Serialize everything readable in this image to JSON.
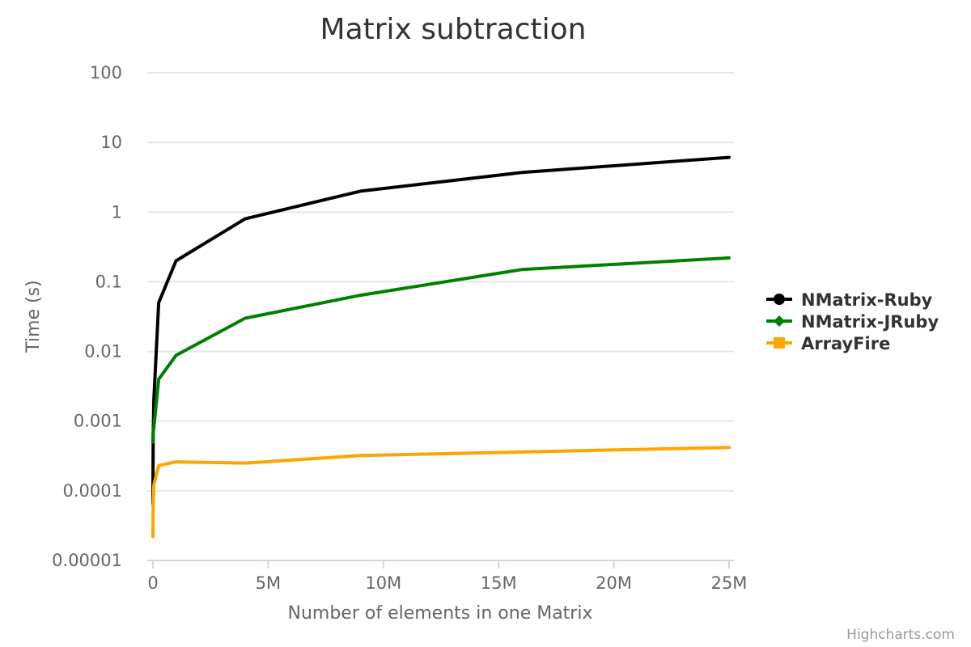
{
  "chart_data": {
    "type": "line",
    "title": "Matrix subtraction",
    "xlabel": "Number of elements in one Matrix",
    "ylabel": "Time (s)",
    "y_scale": "log",
    "ylim": [
      1e-05,
      100
    ],
    "xlim": [
      0,
      25000000
    ],
    "x_ticks": [
      {
        "value": 0,
        "label": "0"
      },
      {
        "value": 5000000,
        "label": "5M"
      },
      {
        "value": 10000000,
        "label": "10M"
      },
      {
        "value": 15000000,
        "label": "15M"
      },
      {
        "value": 20000000,
        "label": "20M"
      },
      {
        "value": 25000000,
        "label": "25M"
      }
    ],
    "y_ticks": [
      {
        "value": 100,
        "label": "100"
      },
      {
        "value": 10,
        "label": "10"
      },
      {
        "value": 1,
        "label": "1"
      },
      {
        "value": 0.1,
        "label": "0.1"
      },
      {
        "value": 0.01,
        "label": "0.01"
      },
      {
        "value": 0.001,
        "label": "0.001"
      },
      {
        "value": 0.0001,
        "label": "0.0001"
      },
      {
        "value": 1e-05,
        "label": "0.00001"
      }
    ],
    "grid": true,
    "legend_position": "right",
    "x": [
      100,
      2500,
      10000,
      40000,
      250000,
      1000000,
      4000000,
      9000000,
      16000000,
      25000000
    ],
    "series": [
      {
        "name": "NMatrix-Ruby",
        "color": "#000000",
        "marker": "circle",
        "values": [
          6.5e-05,
          0.00016,
          0.0006,
          0.002,
          0.05,
          0.2,
          0.8,
          2.0,
          3.7,
          6.1
        ]
      },
      {
        "name": "NMatrix-JRuby",
        "color": "#008000",
        "marker": "diamond",
        "values": [
          0.0005,
          0.0006,
          0.0007,
          0.0008,
          0.004,
          0.0088,
          0.03,
          0.064,
          0.15,
          0.22
        ]
      },
      {
        "name": "ArrayFire",
        "color": "#ffa500",
        "marker": "square",
        "values": [
          2.2e-05,
          2.8e-05,
          6e-05,
          0.00012,
          0.00023,
          0.00026,
          0.00025,
          0.00032,
          0.00036,
          0.00042
        ]
      }
    ]
  },
  "credits": "Highcharts.com"
}
